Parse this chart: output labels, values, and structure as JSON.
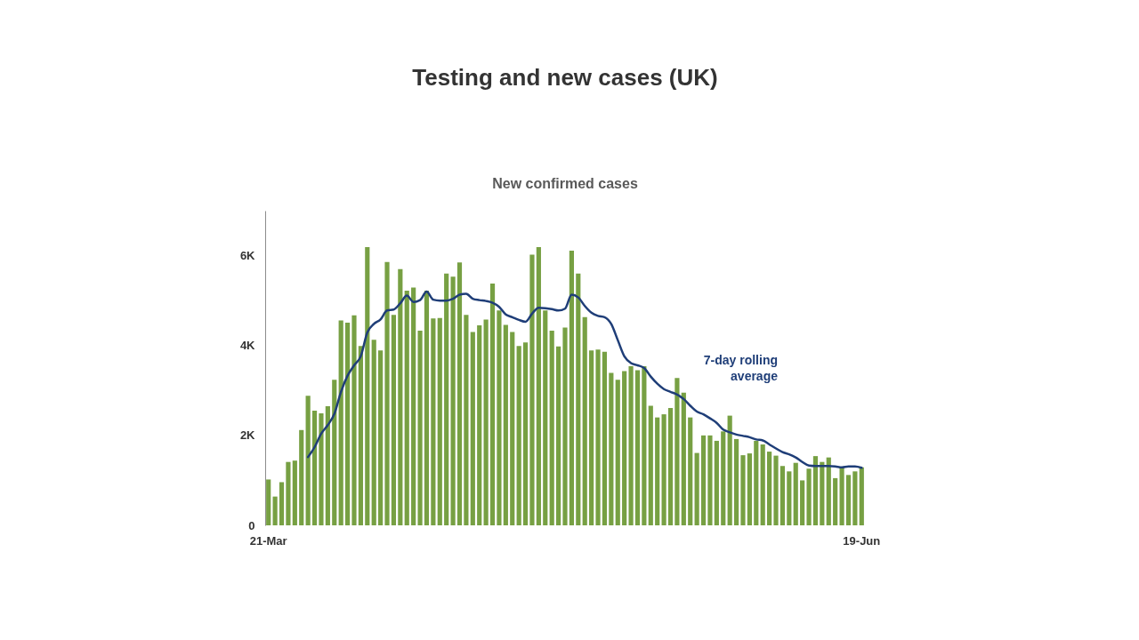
{
  "chart_data": {
    "type": "bar",
    "title": "Testing and new cases (UK)",
    "subtitle": "New confirmed cases",
    "categories": [
      "21-Mar",
      null,
      null,
      null,
      null,
      null,
      null,
      null,
      null,
      null,
      null,
      null,
      null,
      null,
      null,
      null,
      null,
      null,
      null,
      null,
      null,
      null,
      null,
      null,
      null,
      null,
      null,
      null,
      null,
      null,
      null,
      null,
      null,
      null,
      null,
      null,
      null,
      null,
      null,
      null,
      null,
      null,
      null,
      null,
      null,
      null,
      null,
      null,
      null,
      null,
      null,
      null,
      null,
      null,
      null,
      null,
      null,
      null,
      null,
      null,
      null,
      null,
      null,
      null,
      null,
      null,
      null,
      null,
      null,
      null,
      null,
      null,
      null,
      null,
      null,
      null,
      null,
      null,
      null,
      null,
      null,
      null,
      null,
      null,
      null,
      null,
      null,
      null,
      null,
      null,
      "19-Jun"
    ],
    "series": [
      {
        "color": "#77a043",
        "values": [
          1020,
          640,
          960,
          1410,
          1440,
          2120,
          2880,
          2550,
          2490,
          2650,
          3240,
          4560,
          4510,
          4670,
          3990,
          6190,
          4130,
          3890,
          5860,
          4680,
          5700,
          5220,
          5290,
          4330,
          5220,
          4600,
          4610,
          5600,
          5530,
          5850,
          4680,
          4300,
          4450,
          4580,
          5380,
          4780,
          4460,
          4300,
          3990,
          4070,
          6020,
          6190,
          4780,
          4330,
          3980,
          4400,
          6110,
          5600,
          4630,
          3890,
          3910,
          3860,
          3390,
          3240,
          3430,
          3540,
          3450,
          3540,
          2660,
          2400,
          2470,
          2610,
          3280,
          2950,
          2400,
          1610,
          2000,
          2000,
          1880,
          2090,
          2440,
          1920,
          1560,
          1600,
          1880,
          1800,
          1640,
          1550,
          1320,
          1200,
          1390,
          1000,
          1260,
          1540,
          1410,
          1510,
          1050,
          1290,
          1120,
          1200,
          1290
        ]
      },
      {
        "type": "line",
        "name": "7-day rolling average",
        "color": "#1f3e78",
        "values": [
          null,
          null,
          null,
          null,
          null,
          null,
          1520,
          1740,
          2040,
          2230,
          2480,
          2970,
          3330,
          3560,
          3760,
          4290,
          4480,
          4580,
          4780,
          4800,
          4940,
          5110,
          4970,
          5010,
          5200,
          5020,
          5000,
          5000,
          5040,
          5130,
          5150,
          5040,
          5010,
          4990,
          4950,
          4860,
          4690,
          4630,
          4570,
          4530,
          4710,
          4840,
          4830,
          4810,
          4780,
          4820,
          5130,
          5070,
          4880,
          4730,
          4660,
          4630,
          4480,
          4120,
          3760,
          3610,
          3560,
          3500,
          3310,
          3150,
          3030,
          2970,
          2910,
          2810,
          2660,
          2530,
          2470,
          2380,
          2280,
          2130,
          2070,
          2020,
          1990,
          1960,
          1910,
          1890,
          1800,
          1710,
          1630,
          1580,
          1510,
          1410,
          1330,
          1320,
          1320,
          1320,
          1310,
          1290,
          1310,
          1310,
          1280
        ]
      }
    ],
    "ylim": [
      0,
      7000
    ],
    "yticks": [
      0,
      {
        "value": 2000,
        "label": "2K"
      },
      {
        "value": 4000,
        "label": "4K"
      },
      {
        "value": 6000,
        "label": "6K"
      }
    ]
  }
}
